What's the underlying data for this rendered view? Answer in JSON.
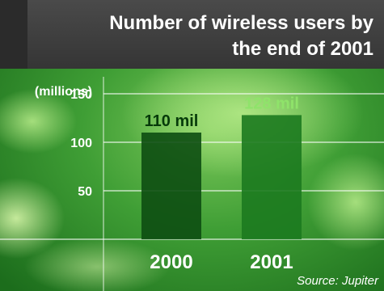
{
  "header": {
    "title_line1": "Number of wireless users by",
    "title_line2": "the end of 2001"
  },
  "source": "Source: Jupiter",
  "colors": {
    "header_bg": "#3f3f3f",
    "header_accent": "#2a2a2a",
    "bg_dark": "#1f7a1e",
    "bg_light": "#8fd36e",
    "bar_2000": "#0d4e12",
    "bar_2001": "#1c7a1f",
    "label_2000": "#063a0a",
    "label_2001": "#8fe36a"
  },
  "chart_data": {
    "type": "bar",
    "title": "Number of wireless users by the end of 2001",
    "ylabel": "(millions)",
    "xlabel": "",
    "categories": [
      "2000",
      "2001"
    ],
    "values": [
      110,
      128
    ],
    "value_labels": [
      "110 mil",
      "128 mil"
    ],
    "yticks": [
      50,
      100,
      150
    ],
    "ylim": [
      0,
      170
    ],
    "grid": true,
    "source": "Source: Jupiter"
  }
}
